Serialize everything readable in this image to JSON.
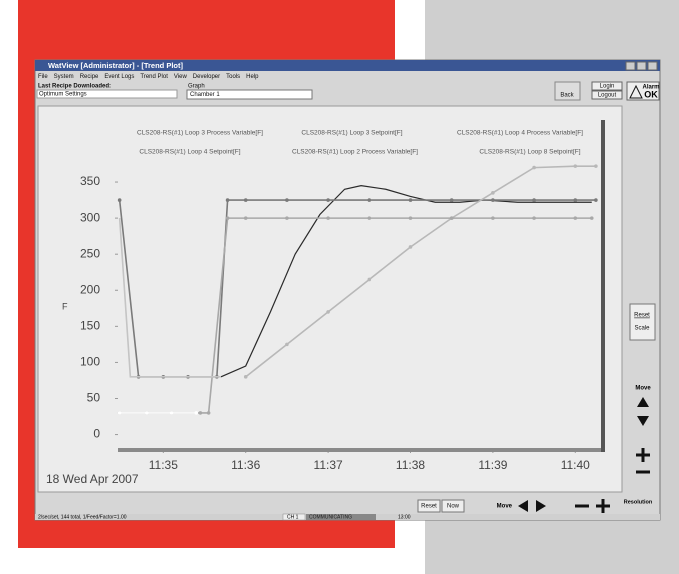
{
  "window": {
    "title": "WatView [Administrator] - [Trend Plot]",
    "menu": [
      "File",
      "System",
      "Recipe",
      "Event Logs",
      "Trend Plot",
      "View",
      "Developer",
      "Tools",
      "Help"
    ],
    "recipe_label": "Last Recipe Downloaded:",
    "recipe_value": "Optimum Settings",
    "graph_label": "Graph",
    "graph_value": "Chamber 1",
    "back": "Back",
    "login": "Login",
    "logout": "Logout",
    "alarm_label": "Alarm",
    "alarm_status": "OK",
    "reset_scale": [
      "Reset",
      "Scale"
    ],
    "move": "Move",
    "reset": "Reset",
    "now": "Now",
    "resolution": "Resolution",
    "status": [
      "2/sec/set, 144 total, 1/Feed/Factor=1.00",
      "CH 1",
      "COMMUNICATING",
      "13:00"
    ]
  },
  "chart_data": {
    "type": "line",
    "y_label": "F",
    "date_label": "18 Wed Apr 2007",
    "xlim": [
      34.45,
      40.3
    ],
    "ylim": [
      -20,
      375
    ],
    "xticks": [
      {
        "value": 35,
        "label": "11:35"
      },
      {
        "value": 36,
        "label": "11:36"
      },
      {
        "value": 37,
        "label": "11:37"
      },
      {
        "value": 38,
        "label": "11:38"
      },
      {
        "value": 39,
        "label": "11:39"
      },
      {
        "value": 40,
        "label": "11:40"
      }
    ],
    "yticks": [
      0,
      50,
      100,
      150,
      200,
      250,
      300,
      350
    ],
    "series": [
      {
        "name": "CLS208-RS(#1) Loop 3 Process Variable[F]",
        "color": "#2a2a2a",
        "markers": false,
        "x": [
          35.7,
          36.0,
          36.3,
          36.6,
          36.9,
          37.2,
          37.4,
          37.7,
          38.0,
          38.3,
          38.6,
          38.9,
          39.3,
          39.7,
          40.2
        ],
        "values": [
          80,
          95,
          170,
          250,
          305,
          340,
          345,
          340,
          330,
          322,
          322,
          325,
          322,
          322,
          322
        ]
      },
      {
        "name": "CLS208-RS(#1) Loop 3 Setpoint[F]",
        "color": "#7a7a7a",
        "markers": true,
        "x": [
          34.47,
          34.7,
          35.0,
          35.3,
          35.65,
          35.78,
          36.0,
          36.5,
          37.0,
          37.5,
          38.0,
          38.5,
          39.0,
          39.5,
          40.0,
          40.25
        ],
        "values": [
          325,
          80,
          80,
          80,
          80,
          325,
          325,
          325,
          325,
          325,
          325,
          325,
          325,
          325,
          325,
          325
        ]
      },
      {
        "name": "CLS208-RS(#1) Loop 4 Process Variable[F]",
        "color": "#b8b8b8",
        "markers": true,
        "x": [
          36.0,
          36.5,
          37.0,
          37.5,
          38.0,
          38.5,
          39.0,
          39.5,
          40.0,
          40.25
        ],
        "values": [
          80,
          125,
          170,
          215,
          260,
          300,
          335,
          370,
          372,
          372
        ]
      },
      {
        "name": "CLS208-RS(#1) Loop 4 Setpoint[F]",
        "color": "#a8a8a8",
        "markers": true,
        "x": [
          34.47,
          34.8,
          35.1,
          35.45,
          35.55,
          35.78,
          36.0,
          36.5,
          37.0,
          37.5,
          38.0,
          38.5,
          39.0,
          39.5,
          40.0,
          40.2
        ],
        "values": [
          30,
          30,
          30,
          30,
          30,
          300,
          300,
          300,
          300,
          300,
          300,
          300,
          300,
          300,
          300,
          300
        ]
      },
      {
        "name": "CLS208-RS(#1) Loop 2 Process Variable[F]",
        "color": "#c4c4c4",
        "markers": false,
        "x": [
          34.47,
          34.6,
          35.0,
          35.5,
          35.7
        ],
        "values": [
          300,
          80,
          80,
          80,
          80
        ]
      },
      {
        "name": "CLS208-RS(#1) Loop 8 Setpoint[F]",
        "color": "#ffffff",
        "markers": true,
        "x": [
          34.47,
          34.8,
          35.1,
          35.4
        ],
        "values": [
          30,
          30,
          30,
          30
        ]
      }
    ]
  }
}
